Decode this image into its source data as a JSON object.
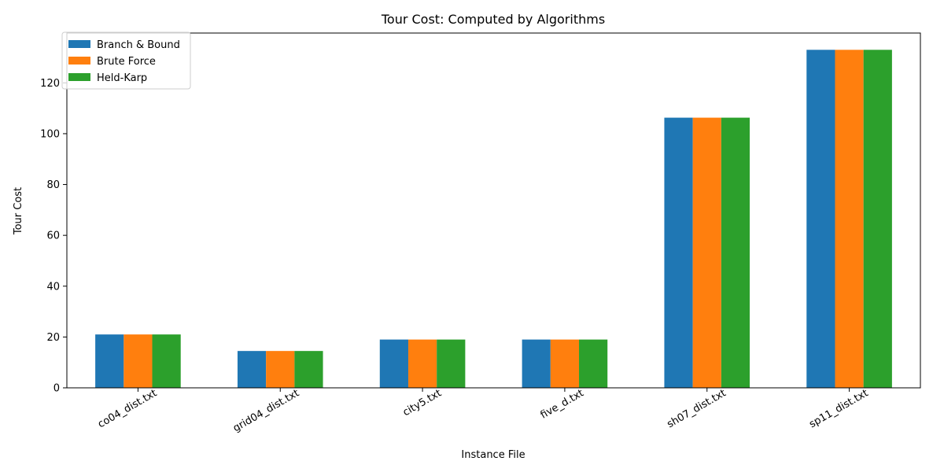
{
  "chart_data": {
    "type": "bar",
    "title": "Tour Cost: Computed by Algorithms",
    "xlabel": "Instance File",
    "ylabel": "Tour Cost",
    "categories": [
      "co04_dist.txt",
      "grid04_dist.txt",
      "city5.txt",
      "five_d.txt",
      "sh07_dist.txt",
      "sp11_dist.txt"
    ],
    "series": [
      {
        "name": "Branch & Bound",
        "color": "#1f77b4",
        "values": [
          21,
          14.5,
          19,
          19,
          106.3,
          133
        ]
      },
      {
        "name": "Brute Force",
        "color": "#ff7f0e",
        "values": [
          21,
          14.5,
          19,
          19,
          106.3,
          133
        ]
      },
      {
        "name": "Held-Karp",
        "color": "#2ca02c",
        "values": [
          21,
          14.5,
          19,
          19,
          106.3,
          133
        ]
      }
    ],
    "ylim": [
      0,
      139.6
    ],
    "yticks": [
      0,
      20,
      40,
      60,
      80,
      100,
      120
    ],
    "grid": false,
    "legend": "top-left"
  }
}
